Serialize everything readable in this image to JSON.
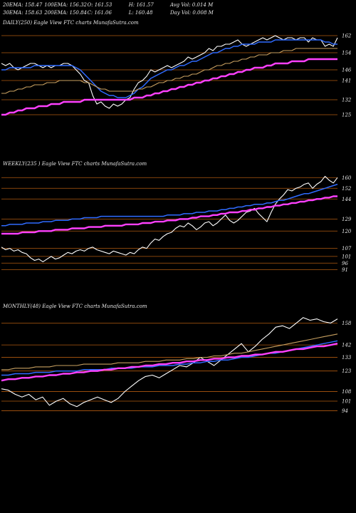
{
  "header": {
    "row1": [
      "20EMA: 158.47",
      "100EMA: 156.32",
      "O: 161.53",
      "H: 161.57",
      "Avg Vol: 0.014  M"
    ],
    "row2": [
      "30EMA: 158.63",
      "200EMA: 150.84",
      "C: 161.06",
      "L: 160.48",
      "Day Vol: 0.008  M"
    ]
  },
  "colors": {
    "background": "#000000",
    "price": "#ffffff",
    "ema_fast": "#2f6bff",
    "ema_long": "#ff40ff",
    "ema_mid": "#c8a060",
    "ref_line": "#b05a10"
  },
  "chart_data": [
    {
      "type": "line",
      "title": "DAILY(250) Eagle   View  FTC charts MunafaSutra.com",
      "y_ticks": [
        162,
        154,
        146,
        141,
        132,
        125
      ],
      "ylim": [
        120,
        166
      ],
      "grid": false,
      "series": [
        {
          "color": "#ffffff",
          "values": [
            149,
            148,
            149,
            147,
            146,
            147,
            148,
            149,
            149,
            148,
            147,
            148,
            147,
            148,
            148,
            149,
            149,
            148,
            146,
            144,
            141,
            140,
            134,
            130,
            131,
            129,
            128,
            130,
            129,
            130,
            132,
            133,
            137,
            140,
            141,
            143,
            146,
            145,
            146,
            147,
            148,
            147,
            148,
            149,
            150,
            152,
            151,
            152,
            153,
            154,
            156,
            155,
            157,
            157,
            158,
            158,
            159,
            160,
            158,
            157,
            158,
            159,
            160,
            161,
            160,
            161,
            162,
            161,
            160,
            161,
            161,
            160,
            161,
            161,
            159,
            161,
            160,
            160,
            157,
            158,
            157,
            161
          ]
        },
        {
          "color": "#2f6bff",
          "values": [
            146,
            146,
            147,
            147,
            147,
            147,
            147,
            147,
            148,
            148,
            148,
            148,
            148,
            148,
            148,
            148,
            148,
            148,
            147,
            146,
            144,
            142,
            140,
            138,
            136,
            135,
            134,
            134,
            133,
            133,
            133,
            134,
            135,
            137,
            138,
            140,
            142,
            143,
            144,
            145,
            146,
            146,
            147,
            148,
            148,
            149,
            150,
            150,
            151,
            152,
            153,
            154,
            154,
            155,
            156,
            156,
            157,
            157,
            158,
            158,
            158,
            158,
            159,
            159,
            159,
            159,
            160,
            160,
            160,
            160,
            160,
            160,
            160,
            160,
            160,
            160,
            160,
            160,
            159,
            159,
            158,
            158
          ]
        },
        {
          "color": "#ff40ff",
          "values": [
            125,
            125,
            126,
            126,
            127,
            127,
            128,
            128,
            128,
            129,
            129,
            129,
            130,
            130,
            130,
            131,
            131,
            131,
            131,
            131,
            132,
            132,
            132,
            132,
            132,
            132,
            132,
            132,
            132,
            132,
            132,
            132,
            133,
            133,
            133,
            134,
            134,
            135,
            135,
            136,
            136,
            137,
            137,
            138,
            138,
            139,
            139,
            140,
            140,
            141,
            141,
            142,
            142,
            143,
            143,
            144,
            144,
            145,
            145,
            146,
            146,
            147,
            147,
            147,
            148,
            148,
            149,
            149,
            149,
            149,
            150,
            150,
            150,
            150,
            151,
            151,
            151,
            151,
            151,
            151,
            151,
            151
          ]
        },
        {
          "color": "#c8a060",
          "values": [
            135,
            135,
            136,
            136,
            137,
            137,
            138,
            138,
            139,
            139,
            139,
            140,
            140,
            140,
            141,
            141,
            141,
            141,
            141,
            141,
            140,
            140,
            139,
            138,
            137,
            137,
            136,
            136,
            136,
            136,
            136,
            136,
            136,
            137,
            137,
            138,
            138,
            139,
            140,
            140,
            141,
            141,
            142,
            142,
            143,
            143,
            144,
            144,
            145,
            146,
            146,
            147,
            148,
            148,
            149,
            149,
            150,
            150,
            151,
            151,
            152,
            152,
            153,
            153,
            153,
            154,
            154,
            154,
            155,
            155,
            155,
            156,
            156,
            156,
            156,
            156,
            156,
            156,
            156,
            156,
            156,
            156
          ]
        }
      ]
    },
    {
      "type": "line",
      "title": "WEEKLY(235                                   ) Eagle   View  FTC charts MunafaSutra.com",
      "y_ticks": [
        160,
        152,
        144,
        129,
        120,
        107,
        101,
        96,
        91
      ],
      "ylim": [
        86,
        166
      ],
      "grid": false,
      "series": [
        {
          "color": "#ffffff",
          "values": [
            108,
            106,
            107,
            105,
            106,
            104,
            103,
            100,
            98,
            99,
            97,
            99,
            101,
            99,
            100,
            102,
            104,
            103,
            105,
            106,
            105,
            107,
            108,
            106,
            105,
            104,
            103,
            105,
            104,
            103,
            102,
            104,
            103,
            106,
            108,
            107,
            111,
            114,
            113,
            116,
            118,
            119,
            122,
            124,
            123,
            126,
            124,
            121,
            123,
            126,
            127,
            124,
            126,
            129,
            132,
            128,
            126,
            128,
            131,
            134,
            135,
            137,
            133,
            130,
            127,
            134,
            140,
            144,
            147,
            151,
            150,
            152,
            153,
            155,
            156,
            152,
            155,
            157,
            161,
            158,
            156,
            160
          ]
        },
        {
          "color": "#2f6bff",
          "values": [
            124,
            124,
            125,
            125,
            125,
            125,
            126,
            126,
            126,
            126,
            127,
            127,
            127,
            128,
            128,
            128,
            128,
            129,
            129,
            129,
            130,
            130,
            130,
            130,
            131,
            131,
            131,
            131,
            131,
            131,
            131,
            131,
            131,
            131,
            131,
            131,
            131,
            131,
            131,
            131,
            132,
            132,
            132,
            132,
            133,
            133,
            133,
            134,
            134,
            134,
            135,
            135,
            135,
            136,
            136,
            137,
            137,
            138,
            138,
            139,
            139,
            140,
            140,
            140,
            141,
            141,
            142,
            143,
            143,
            144,
            145,
            146,
            147,
            148,
            148,
            149,
            150,
            151,
            152,
            153,
            154,
            155
          ]
        },
        {
          "color": "#ff40ff",
          "values": [
            118,
            118,
            118,
            118,
            118,
            119,
            119,
            119,
            119,
            120,
            120,
            120,
            120,
            121,
            121,
            121,
            121,
            122,
            122,
            122,
            122,
            123,
            123,
            123,
            123,
            124,
            124,
            124,
            124,
            124,
            125,
            125,
            125,
            125,
            126,
            126,
            126,
            127,
            127,
            127,
            128,
            128,
            128,
            129,
            129,
            129,
            130,
            130,
            131,
            131,
            131,
            132,
            132,
            133,
            133,
            134,
            134,
            134,
            135,
            135,
            136,
            136,
            137,
            137,
            138,
            138,
            139,
            139,
            140,
            140,
            141,
            141,
            142,
            142,
            143,
            143,
            144,
            144,
            145,
            145,
            146,
            146
          ]
        }
      ]
    },
    {
      "type": "line",
      "title": "MONTHLY(48) Eagle   View  FTC charts MunafaSutra.com",
      "y_ticks": [
        158,
        142,
        133,
        123,
        108,
        101,
        94
      ],
      "ylim": [
        88,
        166
      ],
      "grid": false,
      "series": [
        {
          "color": "#ffffff",
          "values": [
            110,
            109,
            106,
            104,
            106,
            102,
            104,
            98,
            101,
            103,
            99,
            97,
            100,
            102,
            104,
            102,
            100,
            103,
            108,
            112,
            116,
            119,
            120,
            118,
            121,
            124,
            127,
            126,
            129,
            133,
            130,
            127,
            131,
            135,
            139,
            143,
            137,
            141,
            146,
            150,
            155,
            156,
            154,
            158,
            162,
            160,
            161,
            159,
            158,
            161
          ]
        },
        {
          "color": "#2f6bff",
          "values": [
            120,
            120,
            121,
            121,
            121,
            122,
            122,
            122,
            123,
            123,
            123,
            123,
            124,
            124,
            124,
            124,
            125,
            125,
            125,
            125,
            126,
            126,
            126,
            127,
            127,
            127,
            128,
            128,
            129,
            129,
            130,
            130,
            131,
            131,
            132,
            133,
            133,
            134,
            135,
            136,
            136,
            137,
            138,
            139,
            140,
            141,
            142,
            143,
            144,
            145
          ]
        },
        {
          "color": "#ff40ff",
          "values": [
            116,
            117,
            117,
            118,
            118,
            119,
            119,
            120,
            120,
            121,
            121,
            122,
            122,
            123,
            123,
            124,
            124,
            125,
            125,
            126,
            126,
            127,
            127,
            128,
            128,
            129,
            129,
            130,
            130,
            131,
            131,
            132,
            132,
            133,
            133,
            134,
            134,
            135,
            135,
            136,
            137,
            137,
            138,
            139,
            139,
            140,
            141,
            141,
            142,
            143
          ]
        },
        {
          "color": "#c8a060",
          "values": [
            124,
            124,
            125,
            125,
            125,
            126,
            126,
            126,
            127,
            127,
            127,
            127,
            128,
            128,
            128,
            128,
            128,
            129,
            129,
            129,
            129,
            130,
            130,
            130,
            131,
            131,
            131,
            132,
            132,
            133,
            133,
            134,
            134,
            135,
            136,
            136,
            137,
            138,
            139,
            140,
            141,
            142,
            143,
            144,
            145,
            146,
            147,
            148,
            149,
            150
          ]
        }
      ]
    }
  ]
}
